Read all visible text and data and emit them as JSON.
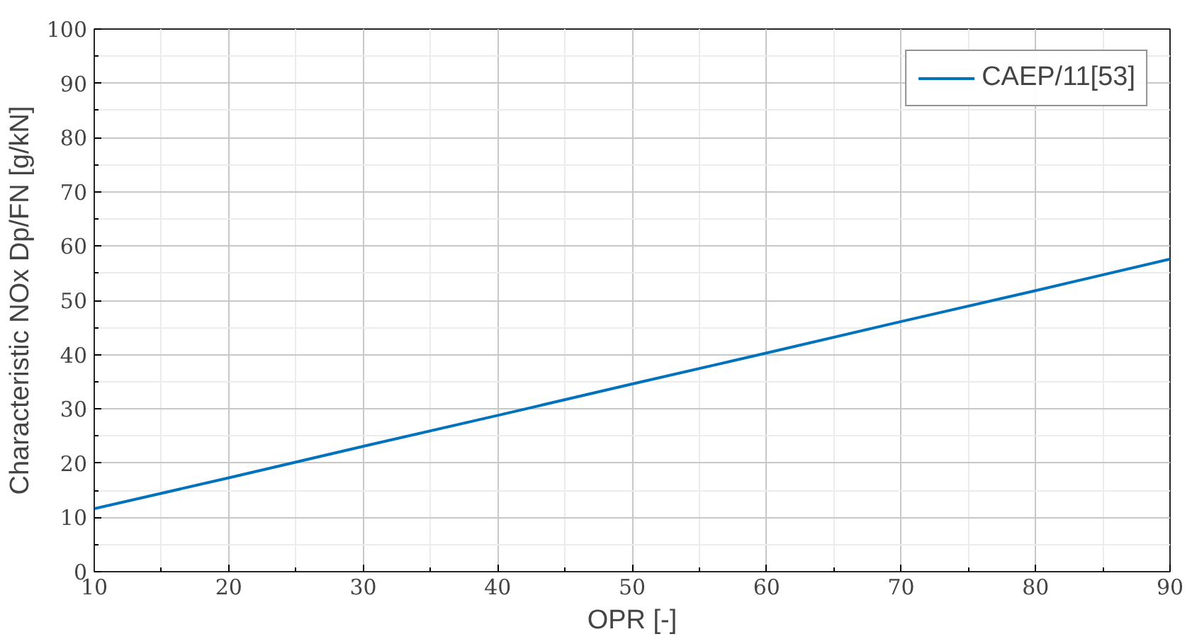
{
  "chart_data": {
    "type": "line",
    "xlabel": "OPR [-]",
    "ylabel": "Characteristic NOx Dp/FN [g/kN]",
    "x": [
      10,
      20,
      30,
      40,
      50,
      60,
      70,
      80,
      90
    ],
    "series": [
      {
        "name": "CAEP/11[53]",
        "color": "#0072bd",
        "values": [
          11.6,
          17.3,
          23.1,
          28.8,
          34.6,
          40.3,
          46.1,
          51.8,
          57.6
        ]
      }
    ],
    "xlim": [
      10,
      90
    ],
    "xticks": [
      10,
      20,
      30,
      40,
      50,
      60,
      70,
      80,
      90
    ],
    "ylim": [
      0,
      100
    ],
    "yticks": [
      0,
      10,
      20,
      30,
      40,
      50,
      60,
      70,
      80,
      90,
      100
    ],
    "grid": true,
    "legend": "top right",
    "marker": "none",
    "line_style": "solid"
  }
}
